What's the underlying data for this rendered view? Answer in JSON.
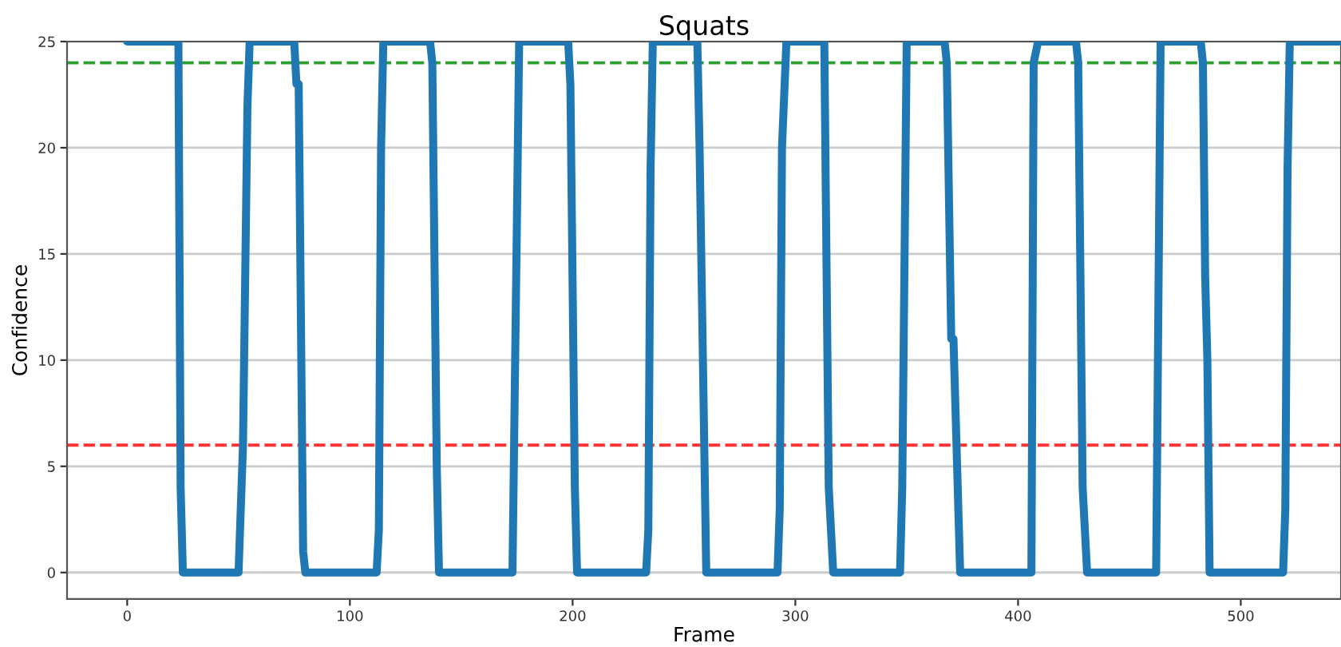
{
  "chart_data": {
    "type": "line",
    "title": "Squats",
    "xlabel": "Frame",
    "ylabel": "Confidence",
    "xlim": [
      -27,
      545
    ],
    "xticks": [
      0,
      100,
      200,
      300,
      400,
      500
    ],
    "ylim": [
      -1.25,
      25
    ],
    "yticks": [
      0,
      5,
      10,
      15,
      20,
      25
    ],
    "grid": "y",
    "series": [
      {
        "color": "#1f77b4",
        "x": [
          0,
          23,
          24,
          25,
          50,
          52,
          54,
          55,
          75,
          76,
          77,
          79,
          80,
          112,
          113,
          114,
          115,
          136,
          137,
          139,
          140,
          173,
          176,
          198,
          199,
          201,
          202,
          233,
          234,
          235,
          236,
          256,
          257,
          260,
          292,
          293,
          294,
          296,
          313,
          315,
          317,
          347,
          348,
          350,
          367,
          368,
          370,
          371,
          374,
          406,
          407,
          409,
          426,
          427,
          429,
          431,
          462,
          464,
          482,
          483,
          484,
          485,
          486,
          519,
          520,
          521,
          522,
          544
        ],
        "values": [
          25,
          25,
          4,
          0,
          0,
          6,
          22,
          25,
          25,
          23,
          23,
          1,
          0,
          0,
          2,
          20,
          25,
          25,
          24,
          5,
          0,
          0,
          25,
          25,
          23,
          4,
          0,
          0,
          2,
          19,
          25,
          25,
          20,
          0,
          0,
          3,
          20,
          25,
          25,
          4,
          0,
          0,
          4,
          25,
          25,
          24,
          11,
          11,
          0,
          0,
          24,
          25,
          25,
          24,
          4,
          0,
          0,
          25,
          25,
          24,
          14,
          10,
          0,
          0,
          3,
          19,
          25,
          25
        ]
      }
    ],
    "ref_lines": [
      {
        "axis": "y",
        "value": 24,
        "color": "#2ca02c",
        "line_style": "dashed"
      },
      {
        "axis": "y",
        "value": 6,
        "color": "#ff3333",
        "line_style": "dashed"
      }
    ]
  }
}
